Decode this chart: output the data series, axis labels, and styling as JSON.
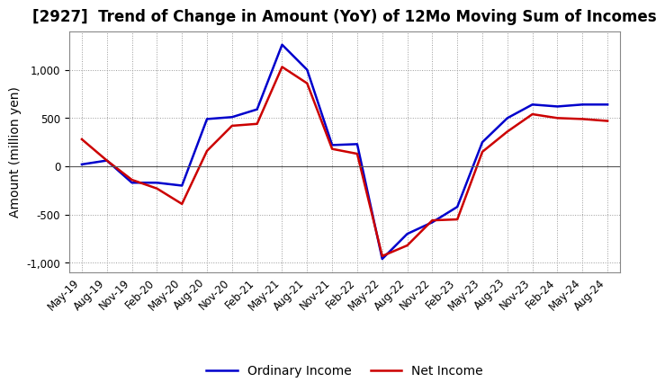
{
  "title": "[2927]  Trend of Change in Amount (YoY) of 12Mo Moving Sum of Incomes",
  "ylabel": "Amount (million yen)",
  "ylim": [
    -1100,
    1400
  ],
  "yticks": [
    -1000,
    -500,
    0,
    500,
    1000
  ],
  "x_labels": [
    "May-19",
    "Aug-19",
    "Nov-19",
    "Feb-20",
    "May-20",
    "Aug-20",
    "Nov-20",
    "Feb-21",
    "May-21",
    "Aug-21",
    "Nov-21",
    "Feb-22",
    "May-22",
    "Aug-22",
    "Nov-22",
    "Feb-23",
    "May-23",
    "Aug-23",
    "Nov-23",
    "Feb-24",
    "May-24",
    "Aug-24"
  ],
  "ordinary_income": [
    20,
    60,
    -170,
    -170,
    -200,
    490,
    510,
    590,
    1260,
    1000,
    220,
    230,
    -960,
    -700,
    -580,
    -420,
    250,
    500,
    640,
    620,
    640,
    640
  ],
  "net_income": [
    280,
    60,
    -140,
    -230,
    -390,
    160,
    420,
    440,
    1030,
    860,
    180,
    130,
    -930,
    -820,
    -560,
    -550,
    150,
    360,
    540,
    500,
    490,
    470
  ],
  "ordinary_color": "#0000cc",
  "net_color": "#cc0000",
  "line_width": 1.8,
  "legend_labels": [
    "Ordinary Income",
    "Net Income"
  ],
  "background_color": "#ffffff",
  "grid_color": "#999999",
  "title_fontsize": 12,
  "label_fontsize": 10,
  "tick_fontsize": 8.5
}
